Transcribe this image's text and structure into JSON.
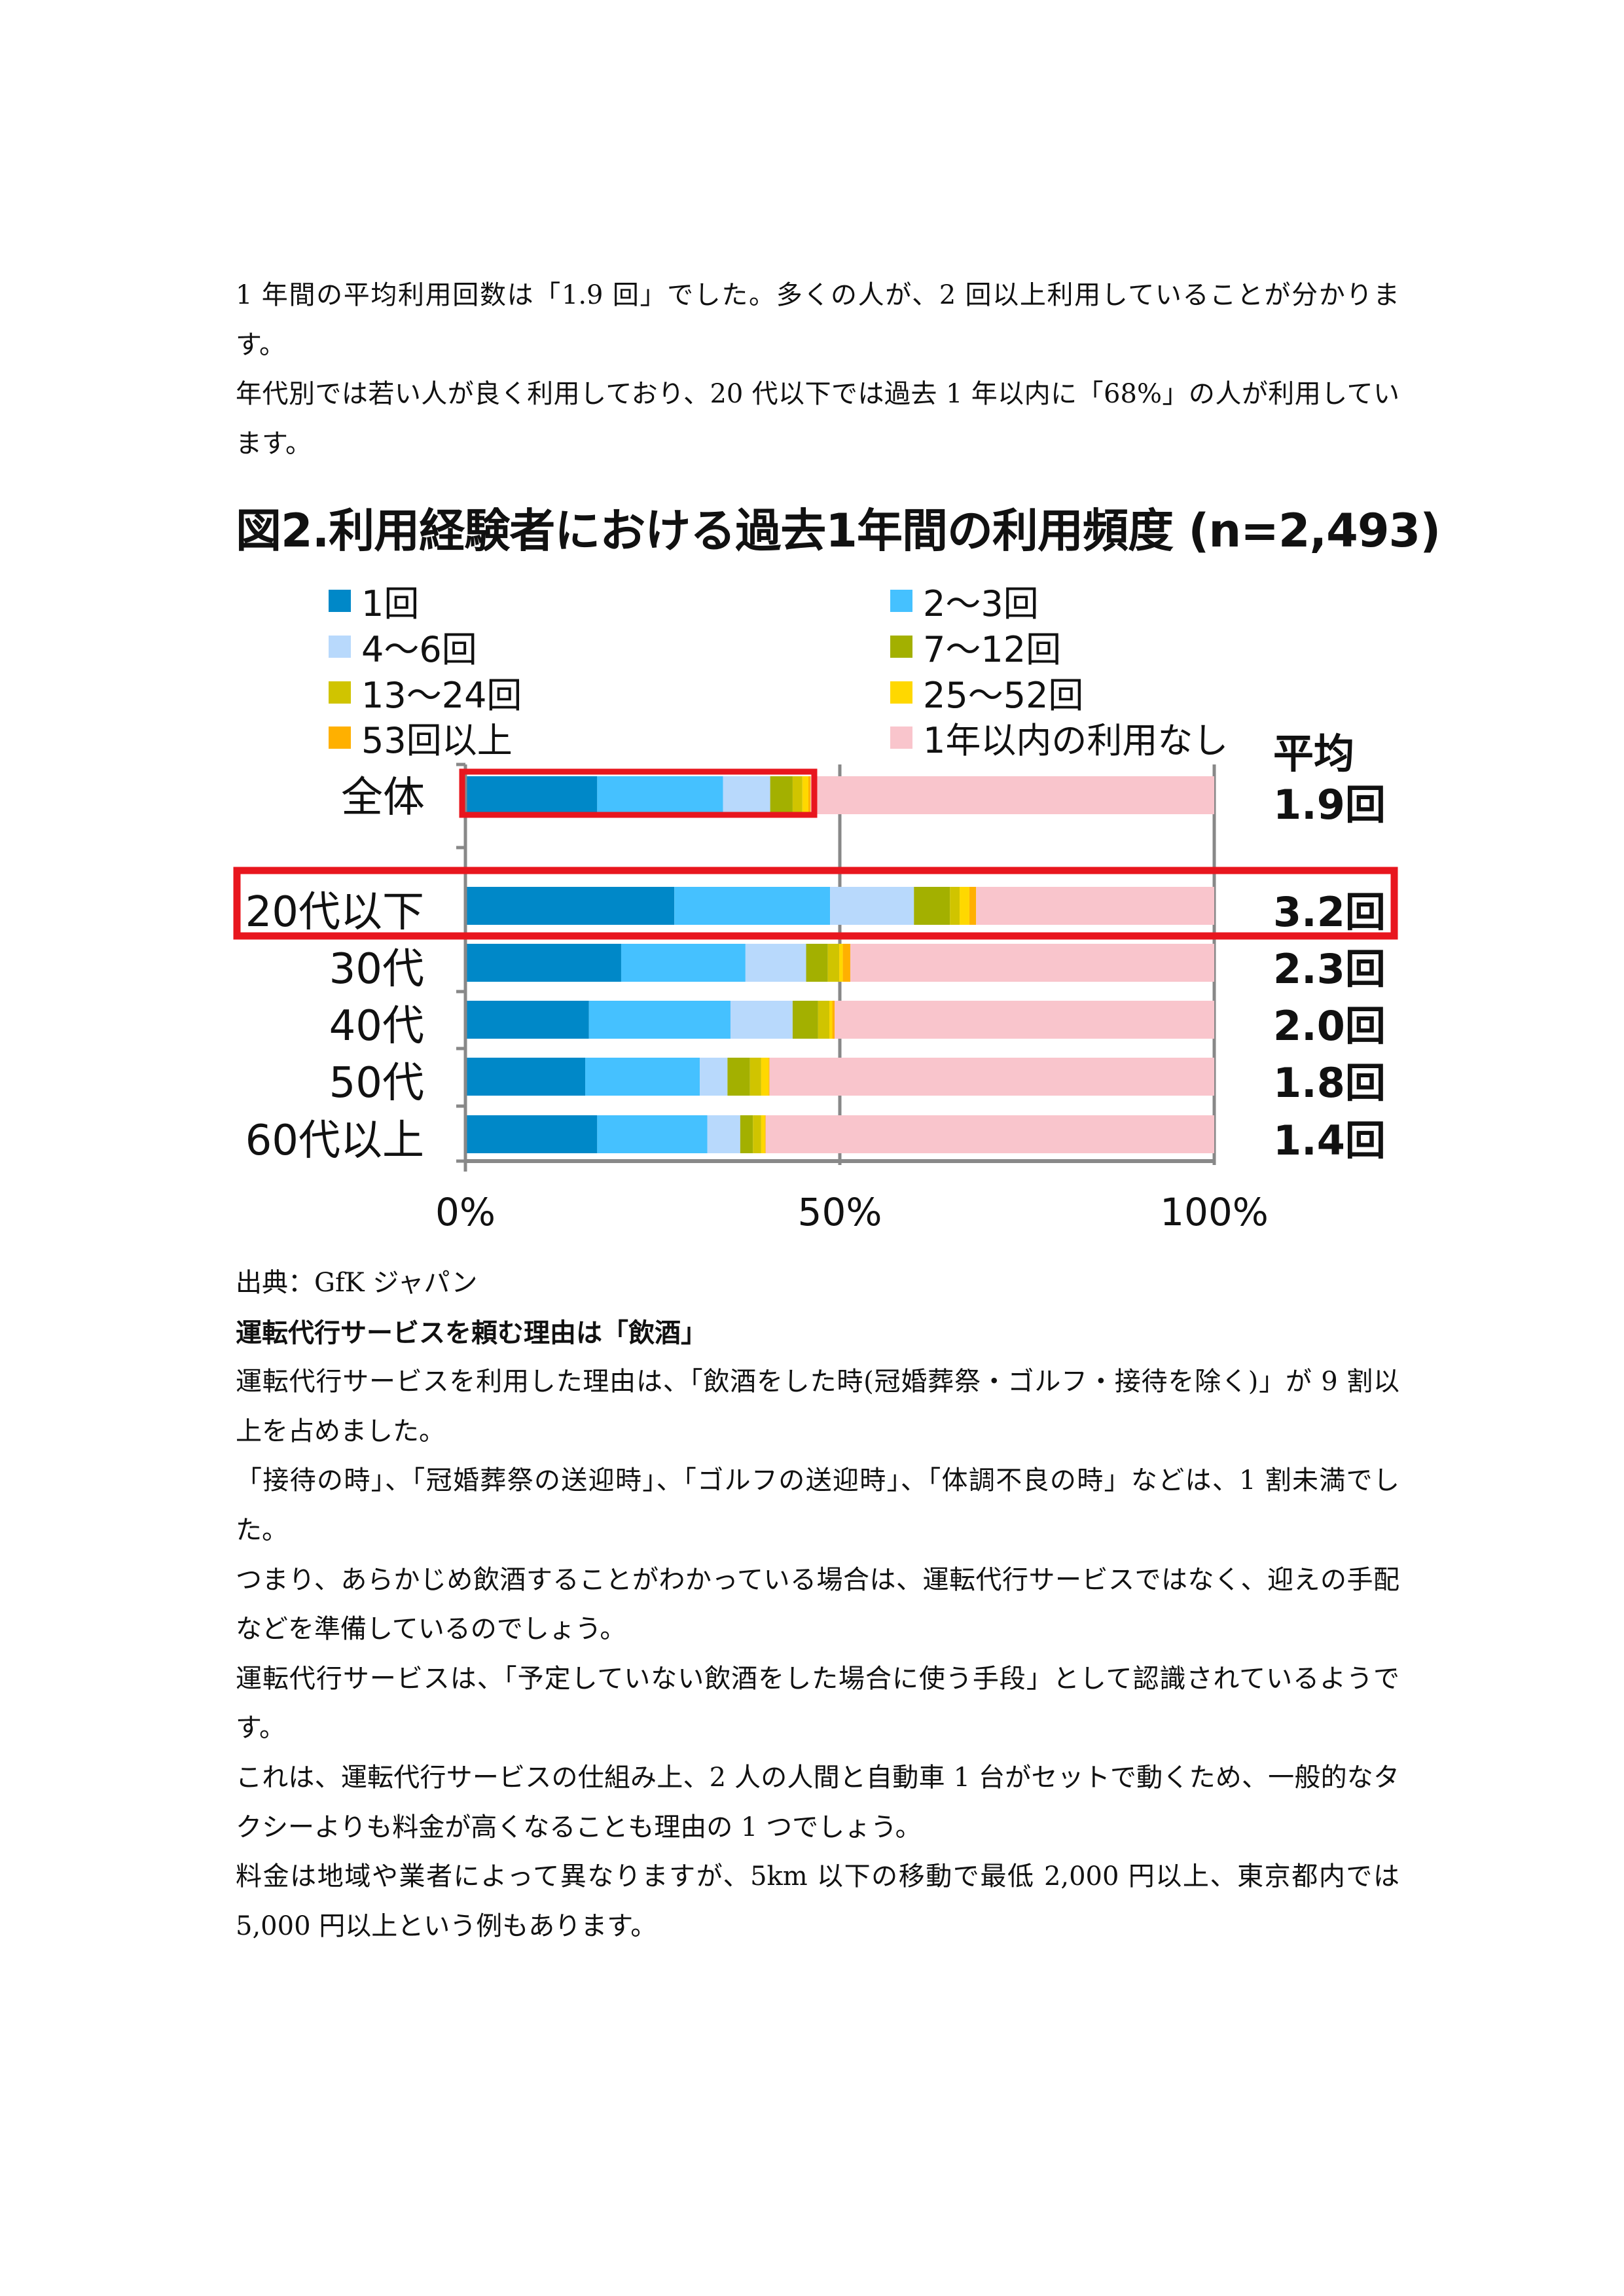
{
  "intro": {
    "paragraphs": [
      "1 年間の平均利用回数は「1.9 回」でした。多くの人が、2 回以上利用していることが分かります。",
      "年代別では若い人が良く利用しており、20 代以下では過去 1 年以内に「68%」の人が利用しています。"
    ]
  },
  "chart_data": {
    "type": "bar",
    "orientation": "horizontal-stacked-100",
    "title": "図2.利用経験者における過去1年間の利用頻度 (n=2,493)",
    "categories": [
      "全体",
      "20代以下",
      "30代",
      "40代",
      "50代",
      "60代以上"
    ],
    "series": [
      {
        "name": "1回",
        "color": "#0088C8",
        "values": [
          17.6,
          27.9,
          20.8,
          16.5,
          16.0,
          17.6
        ]
      },
      {
        "name": "2～3回",
        "color": "#45C1FF",
        "values": [
          16.8,
          20.8,
          16.6,
          18.9,
          15.3,
          14.7
        ]
      },
      {
        "name": "4～6回",
        "color": "#B8D9FC",
        "values": [
          6.3,
          11.2,
          8.1,
          8.3,
          3.7,
          4.4
        ]
      },
      {
        "name": "7～12回",
        "color": "#A3B000",
        "values": [
          3.0,
          4.8,
          2.9,
          3.4,
          3.0,
          1.7
        ]
      },
      {
        "name": "13～24回",
        "color": "#D0C400",
        "values": [
          1.3,
          1.3,
          1.5,
          1.5,
          1.5,
          1.1
        ]
      },
      {
        "name": "25～52回",
        "color": "#FFD800",
        "values": [
          0.8,
          1.3,
          0.5,
          0.4,
          1.0,
          0.5
        ]
      },
      {
        "name": "53回以上",
        "color": "#FFB000",
        "values": [
          0.3,
          0.9,
          1.0,
          0.3,
          0.1,
          0.1
        ]
      },
      {
        "name": "1年以内の利用なし",
        "color": "#F9C5CC",
        "values": [
          53.9,
          31.8,
          48.6,
          50.7,
          59.4,
          59.9
        ]
      }
    ],
    "legend_order": [
      "1回",
      "2～3回",
      "4～6回",
      "7～12回",
      "13～24回",
      "25～52回",
      "53回以上",
      "1年以内の利用なし"
    ],
    "xticks": [
      "0%",
      "50%",
      "100%"
    ],
    "xlim": [
      0,
      100
    ],
    "average_header": "平均",
    "averages": [
      "1.9回",
      "3.2回",
      "2.3回",
      "2.0回",
      "1.8回",
      "1.4回"
    ],
    "highlight_color": "#E8161E",
    "grid": true,
    "legend_placement": "top"
  },
  "body": {
    "source": "出典：GfK ジャパン",
    "heading": "運転代行サービスを頼む理由は「飲酒」",
    "paragraphs": [
      "運転代行サービスを利用した理由は、「飲酒をした時(冠婚葬祭・ゴルフ・接待を除く)」が 9 割以上を占めました。",
      "「接待の時」、「冠婚葬祭の送迎時」、「ゴルフの送迎時」、「体調不良の時」などは、1 割未満でした。",
      "つまり、あらかじめ飲酒することがわかっている場合は、運転代行サービスではなく、迎えの手配などを準備しているのでしょう。",
      "運転代行サービスは、「予定していない飲酒をした場合に使う手段」として認識されているようです。",
      "これは、運転代行サービスの仕組み上、2 人の人間と自動車 1 台がセットで動くため、一般的なタクシーよりも料金が高くなることも理由の 1 つでしょう。",
      "料金は地域や業者によって異なりますが、5km 以下の移動で最低 2,000 円以上、東京都内では 5,000 円以上という例もあります。"
    ]
  }
}
